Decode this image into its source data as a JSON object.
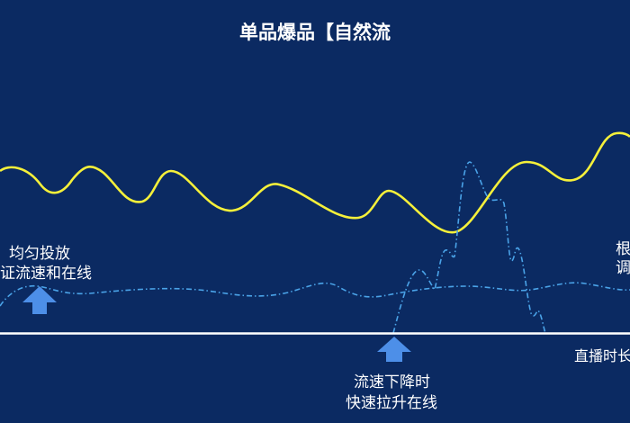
{
  "title": "单品爆品【自然流",
  "annotations": {
    "left_line1": "均匀投放",
    "left_line2": "证流速和在线",
    "middle_line1": "流速下降时",
    "middle_line2": "快速拉升在线",
    "right_line1": "根",
    "right_line2": "调",
    "axis_label": "直播时长"
  },
  "colors": {
    "background": "#0b2a62",
    "main_curve": "#f5f03a",
    "dashed_curves": "#4aa3e8",
    "arrow": "#4d8fe8",
    "baseline": "#ffffff"
  }
}
